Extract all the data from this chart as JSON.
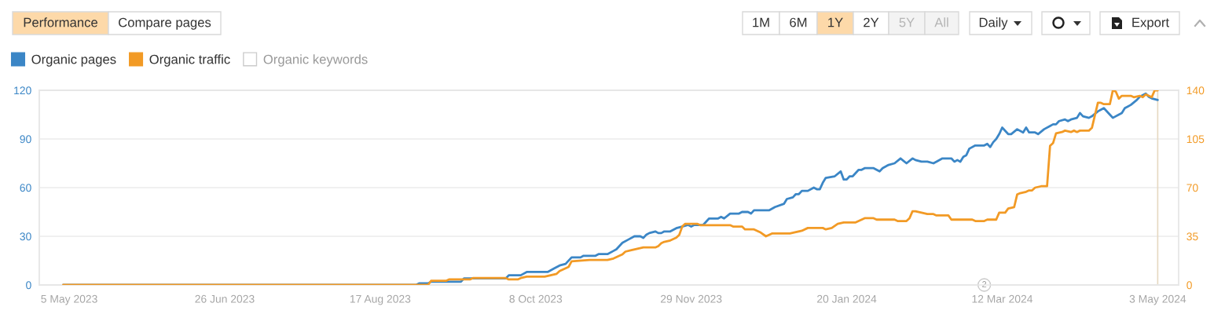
{
  "chart_data": {
    "type": "line",
    "series": [
      {
        "name": "Organic pages",
        "color": "#3b86c6",
        "axis": "y",
        "x": [
          "2023-05-03",
          "2023-08-29",
          "2023-08-30",
          "2023-09-02",
          "2023-09-03",
          "2023-09-13",
          "2023-09-14",
          "2023-09-28",
          "2023-09-29",
          "2023-10-03",
          "2023-10-05",
          "2023-10-12",
          "2023-10-14",
          "2023-10-16",
          "2023-10-18",
          "2023-10-20",
          "2023-10-23",
          "2023-10-24",
          "2023-10-28",
          "2023-10-29",
          "2023-11-01",
          "2023-11-03",
          "2023-11-04",
          "2023-11-06",
          "2023-11-08",
          "2023-11-10",
          "2023-11-12",
          "2023-11-13",
          "2023-11-14",
          "2023-11-15",
          "2023-11-17",
          "2023-11-18",
          "2023-11-19",
          "2023-11-20",
          "2023-11-22",
          "2023-11-24",
          "2023-11-26",
          "2023-11-28",
          "2023-11-29",
          "2023-11-30",
          "2023-12-03",
          "2023-12-05",
          "2023-12-08",
          "2023-12-09",
          "2023-12-10",
          "2023-12-12",
          "2023-12-15",
          "2023-12-16",
          "2023-12-18",
          "2023-12-19",
          "2023-12-20",
          "2023-12-25",
          "2023-12-27",
          "2023-12-30",
          "2023-12-31",
          "2024-01-02",
          "2024-01-03",
          "2024-01-04",
          "2024-01-05",
          "2024-01-07",
          "2024-01-09",
          "2024-01-10",
          "2024-01-11",
          "2024-01-12",
          "2024-01-13",
          "2024-01-16",
          "2024-01-18",
          "2024-01-19",
          "2024-01-20",
          "2024-01-21",
          "2024-01-22",
          "2024-01-24",
          "2024-01-25",
          "2024-01-26",
          "2024-01-29",
          "2024-01-31",
          "2024-02-01",
          "2024-02-03",
          "2024-02-05",
          "2024-02-07",
          "2024-02-09",
          "2024-02-11",
          "2024-02-12",
          "2024-02-14",
          "2024-02-16",
          "2024-02-18",
          "2024-02-19",
          "2024-02-21",
          "2024-02-24",
          "2024-02-25",
          "2024-02-26",
          "2024-02-27",
          "2024-02-28",
          "2024-02-29",
          "2024-03-01",
          "2024-03-03",
          "2024-03-06",
          "2024-03-07",
          "2024-03-08",
          "2024-03-09",
          "2024-03-10",
          "2024-03-11",
          "2024-03-12",
          "2024-03-14",
          "2024-03-15",
          "2024-03-17",
          "2024-03-19",
          "2024-03-20",
          "2024-03-21",
          "2024-03-23",
          "2024-03-24",
          "2024-03-26",
          "2024-03-28",
          "2024-03-29",
          "2024-03-30",
          "2024-03-31",
          "2024-04-02",
          "2024-04-03",
          "2024-04-04",
          "2024-04-06",
          "2024-04-07",
          "2024-04-08",
          "2024-04-10",
          "2024-04-11",
          "2024-04-13",
          "2024-04-14",
          "2024-04-15",
          "2024-04-17",
          "2024-04-18",
          "2024-04-20",
          "2024-04-21",
          "2024-04-22",
          "2024-04-23",
          "2024-04-24",
          "2024-04-26",
          "2024-04-27",
          "2024-04-29",
          "2024-04-30",
          "2024-05-01",
          "2024-05-03"
        ],
        "values": [
          0,
          0,
          1,
          1,
          2,
          2,
          4,
          4,
          6,
          6,
          8,
          8,
          10,
          12,
          13,
          17,
          17,
          18,
          18,
          19,
          19,
          21,
          22,
          26,
          28,
          30,
          30,
          29,
          31,
          32,
          33,
          32,
          32,
          33,
          33,
          35,
          36,
          37,
          36,
          37,
          37,
          41,
          41,
          42,
          41,
          44,
          44,
          45,
          45,
          44,
          46,
          46,
          48,
          50,
          53,
          54,
          56,
          56,
          58,
          58,
          60,
          59,
          59,
          63,
          66,
          67,
          70,
          65,
          65,
          67,
          67,
          71,
          71,
          72,
          72,
          70,
          72,
          74,
          75,
          78,
          75,
          78,
          77,
          76,
          76,
          75,
          76,
          78,
          78,
          76,
          77,
          76,
          79,
          80,
          84,
          86,
          86,
          87,
          85,
          88,
          90,
          93,
          97,
          93,
          93,
          96,
          94,
          97,
          94,
          94,
          93,
          96,
          98,
          99,
          99,
          101,
          102,
          101,
          102,
          103,
          106,
          104,
          103,
          104,
          107,
          108,
          109,
          105,
          103,
          105,
          106,
          109,
          110,
          111,
          114,
          116,
          118,
          116,
          115,
          114
        ]
      },
      {
        "name": "Organic traffic",
        "color": "#f29a25",
        "axis": "y2",
        "x": [
          "2023-05-03",
          "2023-09-02",
          "2023-09-03",
          "2023-09-08",
          "2023-09-09",
          "2023-09-16",
          "2023-09-17",
          "2023-09-28",
          "2023-09-29",
          "2023-10-02",
          "2023-10-03",
          "2023-10-05",
          "2023-10-11",
          "2023-10-13",
          "2023-10-15",
          "2023-10-16",
          "2023-10-17",
          "2023-10-19",
          "2023-10-20",
          "2023-10-26",
          "2023-11-01",
          "2023-11-03",
          "2023-11-04",
          "2023-11-06",
          "2023-11-07",
          "2023-11-09",
          "2023-11-11",
          "2023-11-13",
          "2023-11-17",
          "2023-11-18",
          "2023-11-19",
          "2023-11-20",
          "2023-11-22",
          "2023-11-23",
          "2023-11-24",
          "2023-11-25",
          "2023-11-26",
          "2023-11-27",
          "2023-12-01",
          "2023-12-02",
          "2023-12-12",
          "2023-12-13",
          "2023-12-16",
          "2023-12-17",
          "2023-12-20",
          "2023-12-22",
          "2023-12-24",
          "2023-12-26",
          "2024-01-01",
          "2024-01-03",
          "2024-01-05",
          "2024-01-07",
          "2024-01-12",
          "2024-01-13",
          "2024-01-15",
          "2024-01-17",
          "2024-01-19",
          "2024-01-23",
          "2024-01-25",
          "2024-01-26",
          "2024-01-29",
          "2024-01-30",
          "2024-02-05",
          "2024-02-06",
          "2024-02-09",
          "2024-02-10",
          "2024-02-11",
          "2024-02-12",
          "2024-02-14",
          "2024-02-16",
          "2024-02-18",
          "2024-02-19",
          "2024-02-23",
          "2024-02-24",
          "2024-03-02",
          "2024-03-03",
          "2024-03-06",
          "2024-03-07",
          "2024-03-10",
          "2024-03-11",
          "2024-03-13",
          "2024-03-14",
          "2024-03-16",
          "2024-03-17",
          "2024-03-18",
          "2024-03-20",
          "2024-03-21",
          "2024-03-22",
          "2024-03-23",
          "2024-03-25",
          "2024-03-27",
          "2024-03-28",
          "2024-03-29",
          "2024-03-30",
          "2024-04-01",
          "2024-04-02",
          "2024-04-04",
          "2024-04-05",
          "2024-04-06",
          "2024-04-07",
          "2024-04-10",
          "2024-04-11",
          "2024-04-12",
          "2024-04-13",
          "2024-04-14",
          "2024-04-15",
          "2024-04-17",
          "2024-04-18",
          "2024-04-19",
          "2024-04-20",
          "2024-04-21",
          "2024-04-24",
          "2024-04-25",
          "2024-04-27",
          "2024-04-28",
          "2024-04-29",
          "2024-05-01",
          "2024-05-02",
          "2024-05-03"
        ],
        "values": [
          0,
          0,
          3,
          3,
          4,
          4,
          5,
          5,
          4,
          4,
          5,
          6,
          6,
          7,
          8,
          10,
          11,
          13,
          17,
          18,
          18,
          19,
          20,
          22,
          24,
          25,
          26,
          27,
          27,
          28,
          30,
          31,
          32,
          33,
          34,
          36,
          42,
          44,
          44,
          43,
          43,
          42,
          42,
          40,
          40,
          38,
          35,
          37,
          37,
          38,
          39,
          41,
          41,
          40,
          41,
          44,
          45,
          45,
          47,
          48,
          48,
          47,
          47,
          46,
          46,
          48,
          53,
          53,
          52,
          51,
          51,
          50,
          50,
          47,
          47,
          46,
          46,
          47,
          47,
          52,
          52,
          55,
          56,
          65,
          66,
          67,
          68,
          68,
          70,
          71,
          71,
          100,
          102,
          109,
          110,
          111,
          110,
          111,
          110,
          111,
          111,
          113,
          122,
          131,
          131,
          130,
          130,
          140,
          139,
          134,
          136,
          136,
          135,
          136,
          135,
          137,
          135,
          140,
          140
        ]
      }
    ],
    "xlim": [
      "2023-04-25",
      "2024-05-10"
    ],
    "xticks": [
      {
        "value": "2023-05-05",
        "label": "5 May 2023"
      },
      {
        "value": "2023-06-26",
        "label": "26 Jun 2023"
      },
      {
        "value": "2023-08-17",
        "label": "17 Aug 2023"
      },
      {
        "value": "2023-10-08",
        "label": "8 Oct 2023"
      },
      {
        "value": "2023-11-29",
        "label": "29 Nov 2023"
      },
      {
        "value": "2024-01-20",
        "label": "20 Jan 2024"
      },
      {
        "value": "2024-03-12",
        "label": "12 Mar 2024"
      },
      {
        "value": "2024-05-03",
        "label": "3 May 2024"
      }
    ],
    "ylim": [
      0,
      120
    ],
    "yticks": [
      0,
      30,
      60,
      90,
      120
    ],
    "y2lim": [
      0,
      140
    ],
    "y2ticks": [
      0,
      35,
      70,
      105,
      140
    ],
    "grid": "y",
    "legend": "top left",
    "line_style": "solid",
    "ref_lines": [
      {
        "axis": "x",
        "value": "2024-05-03",
        "color": "#e6d8c2"
      }
    ],
    "annotations": [
      "Performance",
      "Compare pages",
      "Organic keywords",
      "1M",
      "6M",
      "1Y",
      "2Y",
      "5Y",
      "All",
      "Daily",
      "Export",
      {
        "text": "2",
        "x": "2024-03-06",
        "y": 0
      }
    ]
  }
}
